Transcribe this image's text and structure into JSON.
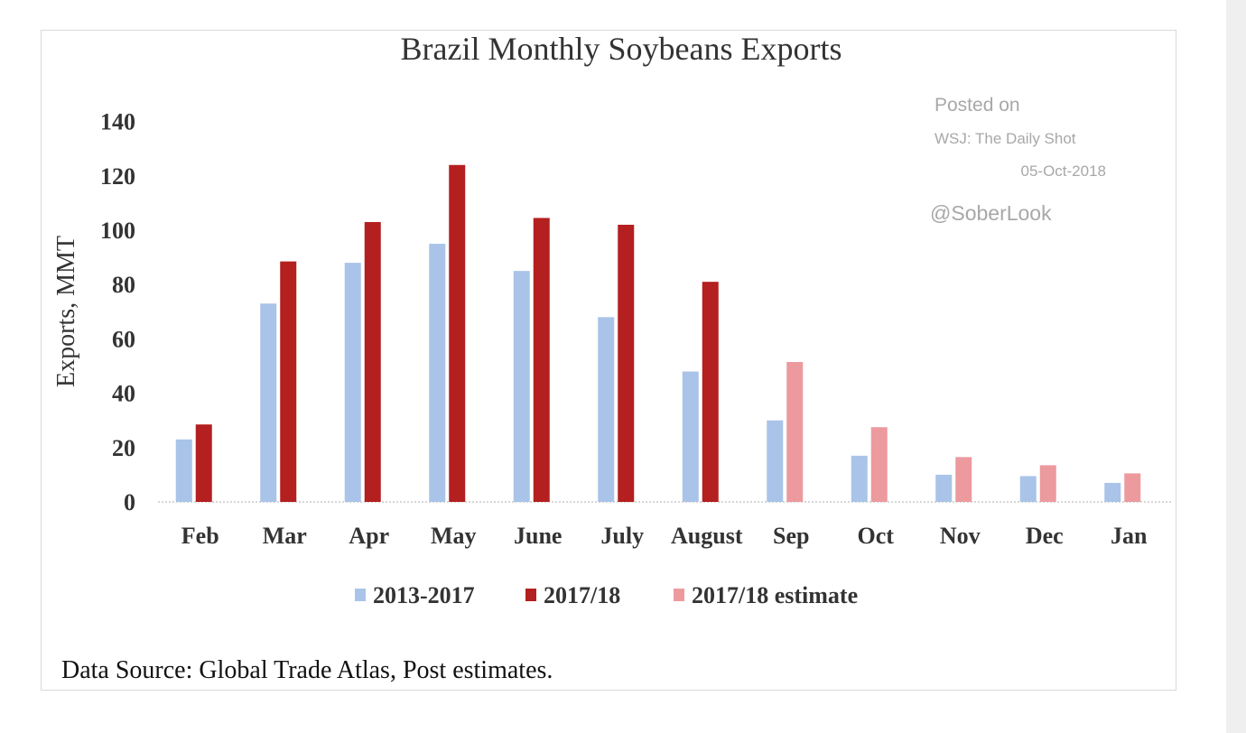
{
  "chart_data": {
    "type": "bar",
    "title": "Brazil Monthly Soybeans Exports",
    "xlabel": "",
    "ylabel": "Exports, MMT",
    "ylim": [
      0,
      140
    ],
    "yticks": [
      0,
      20,
      40,
      60,
      80,
      100,
      120,
      140
    ],
    "grid": false,
    "legend_position": "bottom",
    "categories": [
      "Feb",
      "Mar",
      "Apr",
      "May",
      "June",
      "July",
      "August",
      "Sep",
      "Oct",
      "Nov",
      "Dec",
      "Jan"
    ],
    "series": [
      {
        "name": "2013-2017",
        "color": "#a9c4e8",
        "values": [
          23,
          73,
          88,
          95,
          85,
          68,
          48,
          30,
          17,
          10,
          9.5,
          7
        ]
      },
      {
        "name": "2017/18",
        "color": "#b41f1f",
        "values": [
          28.5,
          88.5,
          103,
          124,
          104.5,
          102,
          81,
          null,
          null,
          null,
          null,
          null
        ]
      },
      {
        "name": "2017/18 estimate",
        "color": "#ec9a9e",
        "values": [
          null,
          null,
          null,
          null,
          null,
          null,
          null,
          51.5,
          27.5,
          16.5,
          13.5,
          10.5
        ]
      }
    ],
    "source": "Data Source: Global Trade Atlas, Post estimates."
  },
  "watermark": {
    "line1": "Posted on",
    "line2": "WSJ: The Daily Shot",
    "line3": "05-Oct-2018",
    "line4": "@SoberLook"
  }
}
